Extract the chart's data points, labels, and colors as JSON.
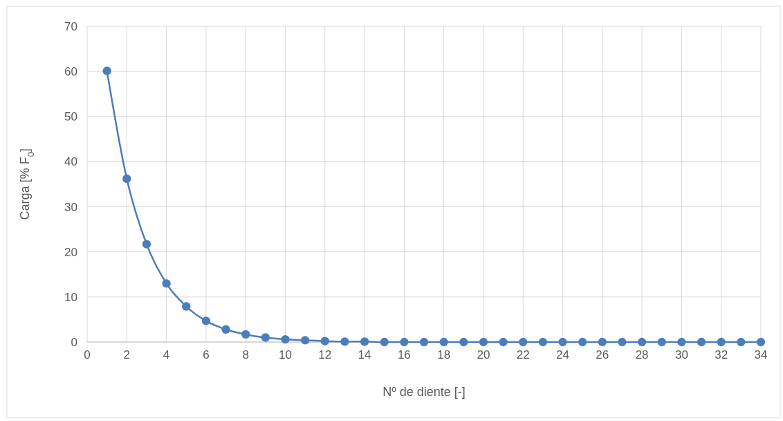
{
  "chart_data": {
    "type": "line",
    "xlabel": "Nº de diente [-]",
    "ylabel": "Carga [% F$_{0}$]",
    "x": [
      1,
      2,
      3,
      4,
      5,
      6,
      7,
      8,
      9,
      10,
      11,
      12,
      13,
      14,
      15,
      16,
      17,
      18,
      19,
      20,
      21,
      22,
      23,
      24,
      25,
      26,
      27,
      28,
      29,
      30,
      31,
      32,
      33,
      34
    ],
    "series": [
      {
        "color": "#4a7ebb",
        "values": [
          60.1,
          36.2,
          21.7,
          13.0,
          7.9,
          4.7,
          2.8,
          1.7,
          1.0,
          0.6,
          0.4,
          0.2,
          0.1,
          0.1,
          0,
          0,
          0,
          0,
          0,
          0,
          0,
          0,
          0,
          0,
          0,
          0,
          0,
          0,
          0,
          0,
          0,
          0,
          0,
          0
        ]
      }
    ],
    "xlim": [
      0,
      34
    ],
    "xticks": [
      0,
      2,
      4,
      6,
      8,
      10,
      12,
      14,
      16,
      18,
      20,
      22,
      24,
      26,
      28,
      30,
      32,
      34
    ],
    "ylim": [
      0,
      70
    ],
    "yticks": [
      0,
      10,
      20,
      30,
      40,
      50,
      60,
      70
    ],
    "grid": true,
    "marker": "circle",
    "line_style": "solid"
  }
}
